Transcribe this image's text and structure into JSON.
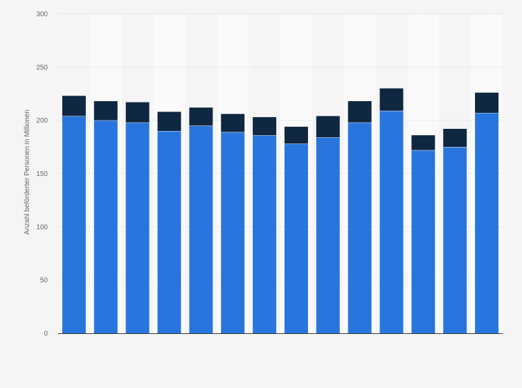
{
  "chart_data": {
    "type": "bar",
    "stacked": true,
    "title": "",
    "xlabel": "",
    "ylabel": "Anzahl beförderter Personen in Millionen",
    "ylim": [
      0,
      300
    ],
    "yticks": [
      0,
      50,
      100,
      150,
      200,
      250,
      300
    ],
    "grid": true,
    "legend": "none",
    "bar_count": 14,
    "series": [
      {
        "color": "#2876dd",
        "values": [
          204,
          200,
          198,
          190,
          195,
          189,
          186,
          178,
          184,
          198,
          209,
          172,
          175,
          207
        ]
      },
      {
        "color": "#0f2740",
        "values": [
          19,
          18,
          19,
          18,
          17,
          17,
          17,
          16,
          20,
          20,
          21,
          14,
          17,
          19
        ]
      }
    ]
  }
}
